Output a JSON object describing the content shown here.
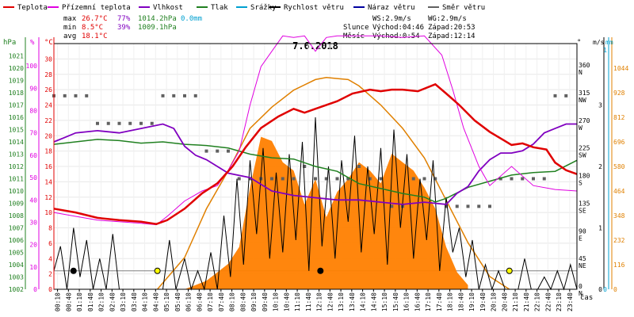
{
  "chart_data": {
    "type": "line",
    "title": "7.6.2018",
    "xlabel": "čas",
    "legend": [
      {
        "label": "Teplota",
        "color": "#e00000"
      },
      {
        "label": "Přízemní teplota",
        "color": "#e000e0"
      },
      {
        "label": "Vlhkost",
        "color": "#8000c0"
      },
      {
        "label": "Tlak",
        "color": "#208020"
      },
      {
        "label": "Srážky",
        "color": "#00a0d0"
      },
      {
        "label": "Rychlost větru",
        "color": "#000000"
      },
      {
        "label": "Náraz větru",
        "color": "#0000a0"
      },
      {
        "label": "Směr větru",
        "color": "#606060"
      }
    ],
    "stats": {
      "max": {
        "label": "max",
        "temp": "26.7°C",
        "hum": "77%",
        "press": "1014.2hPa",
        "rain": "0.0mm"
      },
      "min": {
        "label": "min",
        "temp": "8.5°C",
        "hum": "39%",
        "press": "1009.1hPa"
      },
      "avg": {
        "label": "avg",
        "temp": "18.1°C"
      }
    },
    "info": {
      "ws": "WS:2.9m/s",
      "wg": "WG:2.9m/s",
      "sun_label": "Slunce",
      "sunrise": "Východ:04:46",
      "sunset": "Západ:20:53",
      "moon_label": "Měsíc",
      "moonrise": "Východ:0:54",
      "moonset": "Západ:12:14"
    },
    "axes": {
      "hpa": {
        "unit": "hPa",
        "ticks": [
          1002,
          1003,
          1004,
          1005,
          1006,
          1007,
          1008,
          1009,
          1010,
          1011,
          1012,
          1013,
          1014,
          1015,
          1016,
          1017,
          1018,
          1019,
          1020,
          1021
        ],
        "range": [
          1002,
          1022
        ]
      },
      "pct": {
        "unit": "%",
        "ticks": [
          0,
          10,
          20,
          30,
          40,
          50,
          60,
          70,
          80,
          90,
          100
        ],
        "range": [
          0,
          110
        ]
      },
      "temp": {
        "unit": "°C",
        "ticks": [
          0,
          2,
          4,
          6,
          8,
          10,
          12,
          14,
          16,
          18,
          20,
          22,
          24,
          26,
          28,
          30
        ],
        "range": [
          0,
          32
        ]
      },
      "dir": {
        "unit": "°",
        "ticks": [
          {
            "deg": "0",
            "name": "N"
          },
          {
            "deg": "45",
            "name": "NE"
          },
          {
            "deg": "90",
            "name": "E"
          },
          {
            "deg": "135",
            "name": "SE"
          },
          {
            "deg": "180",
            "name": "S"
          },
          {
            "deg": "225",
            "name": "SW"
          },
          {
            "deg": "270",
            "name": "W"
          },
          {
            "deg": "315",
            "name": "NW"
          },
          {
            "deg": "360",
            "name": "N"
          }
        ],
        "range": [
          0,
          400
        ]
      },
      "wind": {
        "unit": "m/s",
        "ticks": [
          0,
          1,
          2,
          3
        ],
        "range": [
          0,
          4
        ]
      },
      "rain": {
        "unit": "mm",
        "ticks": [
          "0",
          "1"
        ]
      },
      "solar": {
        "ticks": [
          0,
          116,
          232,
          348,
          464,
          580,
          696,
          812,
          928,
          1044
        ],
        "range": [
          0,
          1160
        ]
      }
    },
    "x_ticks": [
      "00:10",
      "00:40",
      "01:10",
      "01:40",
      "02:10",
      "02:40",
      "03:10",
      "03:40",
      "04:10",
      "04:40",
      "05:10",
      "05:40",
      "06:10",
      "06:40",
      "07:10",
      "07:40",
      "08:10",
      "08:40",
      "09:10",
      "09:40",
      "10:10",
      "10:40",
      "11:10",
      "11:40",
      "12:10",
      "12:40",
      "13:10",
      "13:40",
      "14:10",
      "14:40",
      "15:10",
      "15:40",
      "16:10",
      "16:40",
      "17:10",
      "17:40",
      "18:10",
      "18:40",
      "19:10",
      "19:40",
      "20:10",
      "20:40",
      "21:10",
      "21:40",
      "22:10",
      "22:40",
      "23:10",
      "23:40"
    ],
    "x_range": [
      0.0,
      24.0
    ],
    "series": {
      "temperature": {
        "x": [
          0,
          1,
          2,
          3,
          4,
          4.7,
          5.2,
          6,
          6.8,
          7.5,
          8.2,
          8.8,
          9.5,
          10.3,
          11,
          11.5,
          12,
          13,
          13.7,
          14.5,
          15,
          15.5,
          16,
          16.7,
          17.5,
          18,
          18.6,
          19.3,
          20,
          21,
          21.5,
          22,
          22.6,
          23,
          23.5,
          24
        ],
        "y": [
          10.5,
          10,
          9.3,
          9,
          8.8,
          8.5,
          9,
          10.5,
          12.5,
          13.8,
          16,
          18.5,
          21,
          22.5,
          23.5,
          23,
          23.5,
          24.5,
          25.5,
          26,
          25.8,
          26,
          26,
          25.8,
          26.7,
          25.5,
          24,
          22,
          20.5,
          18.8,
          19,
          18.5,
          18.2,
          16.5,
          15.5,
          15
        ]
      },
      "ground_temperature": {
        "x": [
          0,
          1,
          2,
          3,
          4,
          4.7,
          5.2,
          6,
          6.8,
          7.5,
          8,
          8.5,
          9,
          9.5,
          10,
          10.5,
          11,
          11.5,
          12,
          12.5,
          13,
          14,
          15,
          16,
          17,
          17.8,
          18.3,
          18.8,
          19.5,
          20,
          21,
          22,
          23,
          24
        ],
        "y": [
          10,
          9.5,
          9,
          8.8,
          8.6,
          8.4,
          9.5,
          11.5,
          12.8,
          13.5,
          15.5,
          18,
          24,
          29,
          31,
          33,
          32.8,
          33,
          31,
          32.8,
          33,
          33,
          33,
          32.8,
          33,
          30.5,
          26,
          21,
          16,
          13.5,
          16,
          13.5,
          13,
          12.8
        ]
      },
      "humidity": {
        "x": [
          0,
          0.5,
          1,
          2,
          3,
          4,
          5,
          5.5,
          6,
          6.5,
          7,
          8,
          9,
          10,
          11,
          12,
          13,
          14,
          15,
          16,
          17,
          18,
          18.5,
          19,
          19.5,
          20,
          20.5,
          21,
          21.5,
          22,
          22.5,
          23,
          23.5,
          24
        ],
        "y": [
          66,
          68,
          70,
          71,
          70,
          72,
          74,
          72,
          64,
          60,
          58,
          52,
          50,
          44,
          42,
          41,
          40,
          40,
          39,
          38,
          39,
          38,
          43,
          46,
          53,
          58,
          61,
          61,
          62,
          65,
          70,
          72,
          74,
          74
        ]
      },
      "pressure": {
        "x": [
          0,
          1,
          2,
          3,
          4,
          5,
          6,
          7,
          8,
          9,
          10,
          11,
          12,
          13,
          14,
          15,
          16,
          17,
          17.5,
          18,
          19,
          20,
          21,
          22,
          23,
          24
        ],
        "y": [
          1013.8,
          1014,
          1014.2,
          1014.1,
          1013.9,
          1014,
          1013.8,
          1013.7,
          1013.5,
          1013,
          1012.7,
          1012.6,
          1012,
          1011.6,
          1010.6,
          1010.2,
          1009.8,
          1009.5,
          1009.1,
          1009.4,
          1010.3,
          1010.8,
          1011.3,
          1011.5,
          1011.6,
          1012.5
        ]
      },
      "wind_speed": {
        "x": [
          0,
          0.3,
          0.6,
          0.9,
          1.2,
          1.5,
          1.8,
          2.1,
          2.4,
          2.7,
          3,
          3.5,
          4,
          4.5,
          5,
          5.3,
          5.6,
          6,
          6.3,
          6.6,
          6.9,
          7.2,
          7.5,
          7.8,
          8.1,
          8.4,
          8.7,
          9,
          9.3,
          9.6,
          9.9,
          10.2,
          10.5,
          10.8,
          11.1,
          11.4,
          11.7,
          12,
          12.3,
          12.6,
          12.9,
          13.2,
          13.5,
          13.8,
          14.1,
          14.4,
          14.7,
          15,
          15.3,
          15.6,
          15.9,
          16.2,
          16.5,
          16.8,
          17.1,
          17.4,
          17.7,
          18,
          18.3,
          18.6,
          18.9,
          19.2,
          19.5,
          19.8,
          20.1,
          20.4,
          20.7,
          21,
          21.3,
          21.6,
          21.9,
          22.2,
          22.5,
          22.8,
          23.1,
          23.4,
          23.7,
          24
        ],
        "y": [
          0.3,
          0.7,
          0,
          1,
          0.2,
          0.8,
          0,
          0.5,
          0,
          0.9,
          0,
          0,
          0,
          0,
          0,
          0.8,
          0,
          0.5,
          0,
          0.3,
          0,
          0.6,
          0,
          1.2,
          0.2,
          1.8,
          0.4,
          2.1,
          0.9,
          2.3,
          0.5,
          1.9,
          0.6,
          2.2,
          0.8,
          2.4,
          0.3,
          2.8,
          0.7,
          2.0,
          0.5,
          2.1,
          1.1,
          2.5,
          0.6,
          2.0,
          0.9,
          2.3,
          0.4,
          2.6,
          1.0,
          2.2,
          0.5,
          1.8,
          0.8,
          2.1,
          0.3,
          1.5,
          0.6,
          1.0,
          0.2,
          0.8,
          0,
          0.4,
          0,
          0.3,
          0,
          0,
          0,
          0.5,
          0,
          0,
          0.2,
          0,
          0.3,
          0,
          0.4,
          0
        ]
      },
      "wind_direction": {
        "x": [
          0,
          0.5,
          1,
          1.5,
          2,
          2.5,
          3,
          3.5,
          4,
          4.5,
          5,
          5.5,
          6,
          6.5,
          7,
          7.5,
          8,
          8.5,
          9,
          9.5,
          10,
          10.5,
          11,
          11.5,
          12,
          12.5,
          13,
          13.5,
          14,
          14.5,
          15,
          15.5,
          16,
          16.5,
          17,
          17.5,
          18,
          18.5,
          19,
          19.5,
          20,
          20.5,
          21,
          21.5,
          22,
          22.5,
          23,
          23.5
        ],
        "y": [
          315,
          315,
          315,
          315,
          270,
          270,
          270,
          270,
          270,
          270,
          315,
          315,
          315,
          315,
          225,
          225,
          225,
          180,
          180,
          180,
          180,
          180,
          180,
          200,
          180,
          180,
          180,
          180,
          200,
          180,
          180,
          135,
          135,
          180,
          180,
          180,
          135,
          135,
          135,
          135,
          135,
          180,
          180,
          180,
          180,
          180,
          315,
          315
        ]
      },
      "solar": {
        "x": [
          4.75,
          6,
          7,
          8,
          9,
          10,
          11,
          12,
          12.5,
          13,
          13.5,
          14,
          15,
          16,
          17,
          18,
          19,
          20,
          20.9
        ],
        "y": [
          0,
          150,
          380,
          560,
          760,
          860,
          940,
          990,
          1000,
          995,
          990,
          960,
          870,
          760,
          620,
          420,
          220,
          60,
          0
        ]
      },
      "solar_actual": {
        "x": [
          6,
          7,
          7.5,
          8,
          8.5,
          9,
          9.5,
          10,
          10.5,
          11,
          11.5,
          12,
          12.5,
          13,
          13.5,
          14,
          14.5,
          15,
          15.5,
          16,
          16.5,
          17,
          17.5,
          18,
          18.5,
          19
        ],
        "y": [
          0,
          40,
          80,
          120,
          200,
          480,
          720,
          700,
          600,
          560,
          400,
          520,
          340,
          460,
          520,
          600,
          560,
          500,
          640,
          600,
          560,
          480,
          380,
          200,
          80,
          20
        ]
      }
    }
  }
}
